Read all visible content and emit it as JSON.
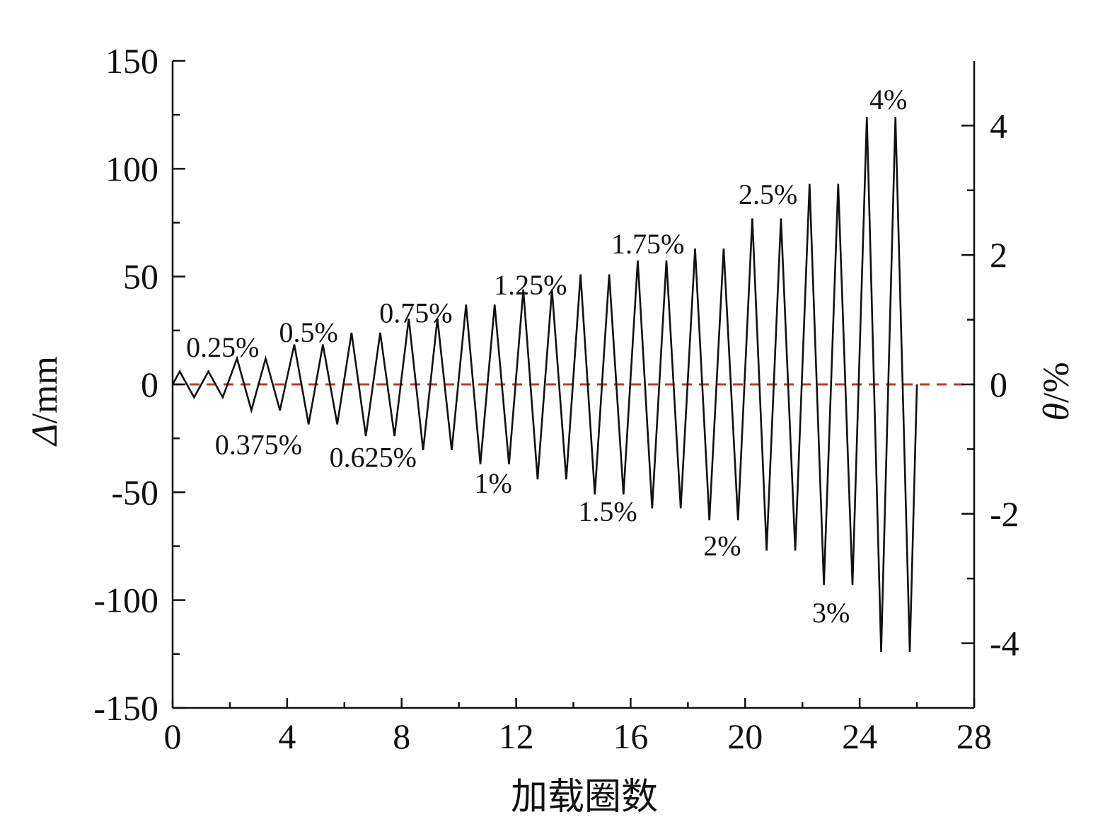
{
  "chart_data": {
    "type": "line",
    "xlabel": "加载圈数",
    "ylabel_left": "Δ/mm",
    "ylabel_left_symbol": "Δ",
    "ylabel_left_unit": "/mm",
    "ylabel_right": "θ/%",
    "ylabel_right_symbol": "θ",
    "ylabel_right_unit": "/%",
    "xlim": [
      0,
      28
    ],
    "ylim_left": [
      -150,
      150
    ],
    "ylim_right": [
      -5,
      5
    ],
    "x_ticks": [
      "0",
      "4",
      "8",
      "12",
      "16",
      "20",
      "24",
      "28"
    ],
    "y_left_ticks": [
      "-150",
      "-100",
      "-50",
      "0",
      "50",
      "100",
      "150"
    ],
    "y_right_ticks": [
      "-4",
      "-2",
      "0",
      "2",
      "4"
    ],
    "grid": false,
    "reference_line": {
      "y": 0,
      "style": "dashed",
      "color": "#c0392b"
    },
    "series": [
      {
        "color": "#111111",
        "points": [
          [
            0,
            0
          ],
          [
            0.25,
            6
          ],
          [
            0.75,
            -6
          ],
          [
            1.25,
            6
          ],
          [
            1.75,
            -6
          ],
          [
            2.25,
            12
          ],
          [
            2.75,
            -12
          ],
          [
            3.25,
            12
          ],
          [
            3.75,
            -12
          ],
          [
            4.25,
            18.5
          ],
          [
            4.75,
            -18.5
          ],
          [
            5.25,
            18.5
          ],
          [
            5.75,
            -18.5
          ],
          [
            6.25,
            24
          ],
          [
            6.75,
            -24
          ],
          [
            7.25,
            24
          ],
          [
            7.75,
            -24
          ],
          [
            8.25,
            30.5
          ],
          [
            8.75,
            -30.5
          ],
          [
            9.25,
            30.5
          ],
          [
            9.75,
            -30.5
          ],
          [
            10.25,
            37
          ],
          [
            10.75,
            -37
          ],
          [
            11.25,
            37
          ],
          [
            11.75,
            -37
          ],
          [
            12.25,
            44
          ],
          [
            12.75,
            -44
          ],
          [
            13.25,
            44
          ],
          [
            13.75,
            -44
          ],
          [
            14.25,
            51
          ],
          [
            14.75,
            -51
          ],
          [
            15.25,
            51
          ],
          [
            15.75,
            -51
          ],
          [
            16.25,
            57.5
          ],
          [
            16.75,
            -57.5
          ],
          [
            17.25,
            57.5
          ],
          [
            17.75,
            -57.5
          ],
          [
            18.25,
            63
          ],
          [
            18.75,
            -63
          ],
          [
            19.25,
            63
          ],
          [
            19.75,
            -63
          ],
          [
            20.25,
            77
          ],
          [
            20.75,
            -77
          ],
          [
            21.25,
            77
          ],
          [
            21.75,
            -77
          ],
          [
            22.25,
            93
          ],
          [
            22.75,
            -93
          ],
          [
            23.25,
            93
          ],
          [
            23.75,
            -93
          ],
          [
            24.25,
            124
          ],
          [
            24.75,
            -124
          ],
          [
            25.25,
            124
          ],
          [
            25.75,
            -124
          ],
          [
            26,
            0
          ]
        ]
      }
    ],
    "annotations": [
      {
        "text": "0.25%",
        "x": 1.75,
        "y": 17
      },
      {
        "text": "0.375%",
        "x": 3.0,
        "y": -28
      },
      {
        "text": "0.5%",
        "x": 4.75,
        "y": 24
      },
      {
        "text": "0.625%",
        "x": 7.0,
        "y": -34
      },
      {
        "text": "0.75%",
        "x": 8.5,
        "y": 33
      },
      {
        "text": "1%",
        "x": 11.2,
        "y": -46
      },
      {
        "text": "1.25%",
        "x": 12.5,
        "y": 46
      },
      {
        "text": "1.5%",
        "x": 15.2,
        "y": -59
      },
      {
        "text": "1.75%",
        "x": 16.6,
        "y": 65
      },
      {
        "text": "2%",
        "x": 19.2,
        "y": -75
      },
      {
        "text": "2.5%",
        "x": 20.8,
        "y": 88
      },
      {
        "text": "3%",
        "x": 23.0,
        "y": -106
      },
      {
        "text": "4%",
        "x": 25.0,
        "y": 132
      }
    ]
  }
}
